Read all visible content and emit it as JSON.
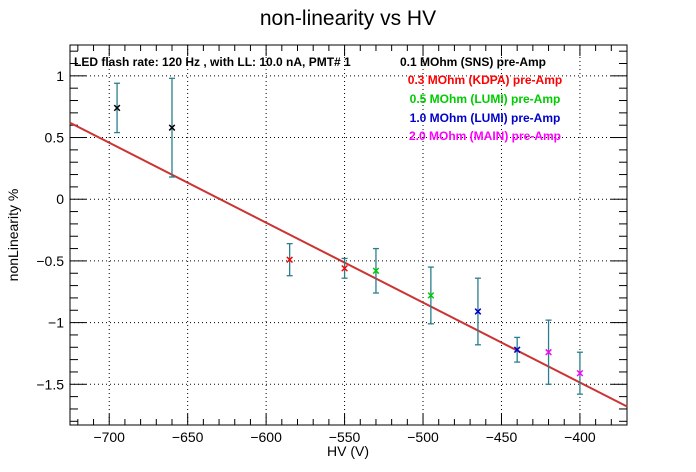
{
  "chart_data": {
    "type": "scatter",
    "title": "non-linearity vs HV",
    "xlabel": "HV (V)",
    "ylabel": "nonLinearity %",
    "xlim": [
      -725,
      -370
    ],
    "ylim": [
      -1.83,
      1.25
    ],
    "x_ticks": [
      -700,
      -650,
      -600,
      -550,
      -500,
      -450,
      -400
    ],
    "x_tick_labels": [
      "−700",
      "−650",
      "−600",
      "−550",
      "−500",
      "−450",
      "−400"
    ],
    "y_ticks": [
      1,
      0.5,
      0,
      -0.5,
      -1,
      -1.5
    ],
    "y_tick_labels": [
      "1",
      "0.5",
      "0",
      "−0.5",
      "−1",
      "−1.5"
    ],
    "grid": true,
    "annotation": "LED flash rate: 120 Hz , with LL: 10.0 nA, PMT# 1",
    "series": [
      {
        "name": "0.1 MOhm (SNS) pre-Amp",
        "color": "#000000",
        "points": [
          {
            "x": -695,
            "y": 0.74,
            "err": 0.2
          },
          {
            "x": -660,
            "y": 0.58,
            "err": 0.4
          }
        ]
      },
      {
        "name": "0.3 MOhm (KDPA) pre-Amp",
        "color": "#ff0000",
        "points": [
          {
            "x": -585,
            "y": -0.49,
            "err": 0.13
          },
          {
            "x": -550,
            "y": -0.56,
            "err": 0.08
          }
        ]
      },
      {
        "name": "0.5 MOhm (LUMI) pre-Amp",
        "color": "#00cc00",
        "points": [
          {
            "x": -530,
            "y": -0.58,
            "err": 0.18
          },
          {
            "x": -495,
            "y": -0.78,
            "err": 0.23
          }
        ]
      },
      {
        "name": "1.0 MOhm (LUMI) pre-Amp",
        "color": "#0000cc",
        "points": [
          {
            "x": -465,
            "y": -0.91,
            "err": 0.27
          },
          {
            "x": -440,
            "y": -1.22,
            "err": 0.1
          }
        ]
      },
      {
        "name": "2.0 MOhm (MAIN) pre-Amp",
        "color": "#ff00ff",
        "points": [
          {
            "x": -420,
            "y": -1.24,
            "err": 0.26
          },
          {
            "x": -400,
            "y": -1.41,
            "err": 0.17
          }
        ]
      }
    ],
    "fit_line": {
      "color": "#cc3333",
      "x": [
        -725,
        -370
      ],
      "y": [
        0.62,
        -1.68
      ]
    },
    "error_bar_color": "#2a7f8a"
  }
}
